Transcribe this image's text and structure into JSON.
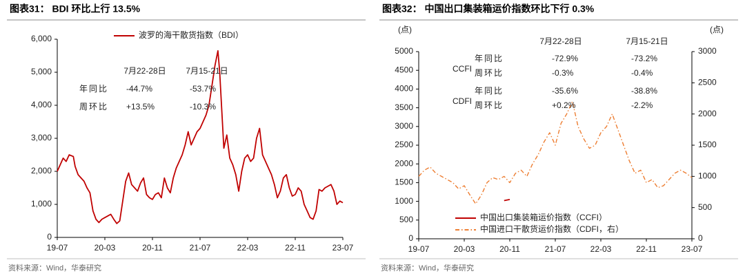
{
  "chart_data": [
    {
      "type": "line",
      "title": "图表31：  BDI 环比上行 13.5%",
      "source": "资料来源：Wind，华泰研究",
      "x": [
        0,
        0.5,
        1,
        1.5,
        2,
        2.7,
        3,
        3.5,
        4,
        4.5,
        5,
        5.5,
        6,
        6.5,
        7,
        7.5,
        8,
        8.5,
        9,
        9.5,
        10,
        10.5,
        11,
        11.5,
        12,
        12.5,
        13,
        13.5,
        14,
        14.5,
        15,
        15.5,
        16,
        16.5,
        17,
        17.5,
        18,
        18.5,
        19,
        19.5,
        20,
        20.5,
        21,
        21.5,
        22,
        22.5,
        23,
        23.5,
        24,
        24.5,
        25,
        25.5,
        26,
        26.5,
        27,
        27.3,
        27.6,
        28,
        28.5,
        29,
        29.5,
        30,
        30.5,
        31,
        31.5,
        32,
        32.5,
        33,
        33.5,
        34,
        34.5,
        35,
        35.5,
        36,
        36.5,
        37,
        37.5,
        38,
        38.5,
        39,
        39.5,
        40,
        40.5,
        41,
        41.5,
        42,
        42.5,
        43,
        43.5,
        44,
        44.5,
        45,
        45.5,
        46,
        46.5,
        47,
        47.5,
        48
      ],
      "series": [
        {
          "name": "波罗的海干散货指数（BDI）",
          "color": "#c00000",
          "values": [
            2000,
            2200,
            2400,
            2300,
            2500,
            2450,
            2150,
            1900,
            1800,
            1700,
            1500,
            1350,
            800,
            550,
            450,
            550,
            600,
            650,
            700,
            550,
            420,
            500,
            1100,
            1700,
            1950,
            1600,
            1500,
            1400,
            1650,
            1800,
            1300,
            1200,
            1150,
            1300,
            1350,
            1200,
            1800,
            1500,
            1350,
            1800,
            2100,
            2300,
            2500,
            2800,
            3200,
            2800,
            3000,
            3200,
            3300,
            3500,
            3700,
            4000,
            4600,
            5200,
            5650,
            5000,
            4000,
            2700,
            3100,
            2400,
            2200,
            1900,
            1400,
            2000,
            2400,
            2500,
            2300,
            2400,
            3000,
            3300,
            2500,
            2300,
            2100,
            1900,
            1600,
            1200,
            1400,
            1800,
            1900,
            1500,
            1250,
            1300,
            1500,
            1400,
            1000,
            800,
            600,
            550,
            800,
            1450,
            1400,
            1500,
            1550,
            1600,
            1400,
            1000,
            1100,
            1050
          ]
        }
      ],
      "xlim": [
        0,
        48
      ],
      "xticks": [
        {
          "value": 0,
          "label": "19-07"
        },
        {
          "value": 8,
          "label": "20-03"
        },
        {
          "value": 16,
          "label": "20-11"
        },
        {
          "value": 24,
          "label": "21-07"
        },
        {
          "value": 32,
          "label": "22-03"
        },
        {
          "value": 40,
          "label": "22-11"
        },
        {
          "value": 48,
          "label": "23-07"
        }
      ],
      "ylim": [
        0,
        6000
      ],
      "yticks": [
        0,
        {
          "value": 1000,
          "label": "1,000"
        },
        {
          "value": 2000,
          "label": "2,000"
        },
        {
          "value": 3000,
          "label": "3,000"
        },
        {
          "value": 4000,
          "label": "4,000"
        },
        {
          "value": 5000,
          "label": "5,000"
        },
        {
          "value": 6000,
          "label": "6,000"
        }
      ],
      "legend": "top",
      "annotation": {
        "columns": [
          "7月22-28日",
          "7月15-21日"
        ],
        "groups": [
          {
            "rows": [
              {
                "label": "年同比",
                "values": [
                  "-44.7%",
                  "-53.7%"
                ]
              },
              {
                "label": "周环比",
                "values": [
                  "+13.5%",
                  "-10.3%"
                ]
              }
            ]
          }
        ]
      }
    },
    {
      "type": "line",
      "title": "图表32：  中国出口集装箱运价指数环比下行 0.3%",
      "source": "资料来源：Wind，华泰研究",
      "y_unit": "(点)",
      "y2_unit": "(点)",
      "x": [
        0,
        1,
        2,
        3,
        4,
        5,
        6,
        7,
        8,
        9,
        10,
        11,
        12,
        13,
        14,
        15,
        16,
        17,
        18,
        19,
        20,
        21,
        22,
        23,
        24,
        25,
        26,
        27,
        28,
        29,
        30,
        31,
        32,
        33,
        34,
        35,
        36,
        37,
        38,
        39,
        40,
        41,
        42,
        43,
        44,
        45,
        46,
        47,
        48
      ],
      "series": [
        {
          "name": "中国出口集装箱运价指数（CCFI）",
          "color": "#c00000",
          "values": [
            null,
            null,
            null,
            null,
            null,
            null,
            null,
            null,
            null,
            null,
            null,
            null,
            null,
            null,
            null,
            1020,
            1050,
            null,
            null,
            null,
            null,
            null,
            null,
            null,
            null,
            null,
            null,
            null,
            null,
            null,
            null,
            null,
            null,
            null,
            null,
            null,
            null,
            null,
            null,
            null,
            null,
            null,
            null,
            null,
            null,
            null,
            null,
            null,
            null
          ]
        },
        {
          "name": "中国进口干散货运价指数（CDFI，右）",
          "color": "#ed7d31",
          "axis": "y2",
          "dash": "dashdot",
          "values": [
            1000,
            1100,
            1150,
            1050,
            1000,
            950,
            900,
            800,
            850,
            700,
            560,
            700,
            900,
            980,
            950,
            1000,
            900,
            1050,
            1100,
            1000,
            1200,
            1350,
            1550,
            1700,
            1500,
            1850,
            2000,
            2200,
            1800,
            1600,
            1450,
            1500,
            1700,
            1800,
            2000,
            1750,
            1500,
            1250,
            1050,
            1100,
            900,
            950,
            820,
            850,
            950,
            1050,
            1100,
            1050,
            980
          ]
        }
      ],
      "xlim": [
        0,
        48
      ],
      "xticks": [
        {
          "value": 0,
          "label": "19-07"
        },
        {
          "value": 8,
          "label": "20-03"
        },
        {
          "value": 16,
          "label": "20-11"
        },
        {
          "value": 24,
          "label": "21-07"
        },
        {
          "value": 32,
          "label": "22-03"
        },
        {
          "value": 40,
          "label": "22-11"
        },
        {
          "value": 48,
          "label": "23-07"
        }
      ],
      "ylim": [
        0,
        5000
      ],
      "yticks": [
        0,
        500,
        1000,
        1500,
        2000,
        2500,
        3000,
        3500,
        4000,
        4500,
        5000
      ],
      "y2lim": [
        0,
        3000
      ],
      "y2ticks": [
        0,
        500,
        1000,
        1500,
        2000,
        2500,
        3000
      ],
      "legend": "lower left",
      "annotation": {
        "columns": [
          "7月22-28日",
          "7月15-21日"
        ],
        "groups": [
          {
            "name": "CCFI",
            "rows": [
              {
                "label": "年同比",
                "values": [
                  "-72.9%",
                  "-73.2%"
                ]
              },
              {
                "label": "周环比",
                "values": [
                  "-0.3%",
                  "-0.4%"
                ]
              }
            ]
          },
          {
            "name": "CDFI",
            "rows": [
              {
                "label": "年同比",
                "values": [
                  "-35.6%",
                  "-38.8%"
                ]
              },
              {
                "label": "周环比",
                "values": [
                  "+0.2%",
                  "-2.2%"
                ]
              }
            ]
          }
        ]
      }
    }
  ]
}
